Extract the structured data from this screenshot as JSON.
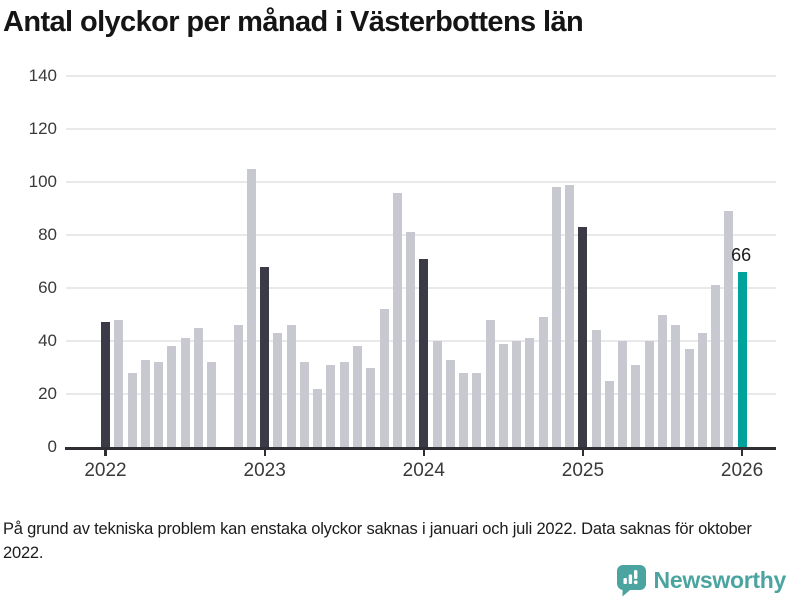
{
  "title": "Antal olyckor per månad i Västerbottens län",
  "footnote": "På grund av tekniska problem kan enstaka olyckor saknas i januari och juli 2022. Data saknas för oktober 2022.",
  "brand": {
    "name": "Newsworthy",
    "color": "#4ba49f"
  },
  "colors": {
    "bar": "#c8c8d0",
    "highlight_dark": "#3b3b48",
    "highlight_teal": "#00a39b",
    "grid": "#e9e9eb",
    "axis": "#2f2f33",
    "text": "#1a1a1a"
  },
  "chart_data": {
    "type": "bar",
    "title": "Antal olyckor per månad i Västerbottens län",
    "xlabel": "",
    "ylabel": "",
    "ylim": [
      0,
      140
    ],
    "yticks": [
      0,
      20,
      40,
      60,
      80,
      100,
      120,
      140
    ],
    "year_ticks": [
      2022,
      2023,
      2024,
      2025,
      2026
    ],
    "grid": true,
    "legend": "none",
    "annotation": {
      "text": "66",
      "month": "2026-01"
    },
    "missing_months": [
      "2022-10"
    ],
    "points": [
      {
        "month": "2022-01",
        "value": 47,
        "color": "dark"
      },
      {
        "month": "2022-02",
        "value": 48
      },
      {
        "month": "2022-03",
        "value": 28
      },
      {
        "month": "2022-04",
        "value": 33
      },
      {
        "month": "2022-05",
        "value": 32
      },
      {
        "month": "2022-06",
        "value": 38
      },
      {
        "month": "2022-07",
        "value": 41
      },
      {
        "month": "2022-08",
        "value": 45
      },
      {
        "month": "2022-09",
        "value": 32
      },
      {
        "month": "2022-10",
        "value": null
      },
      {
        "month": "2022-11",
        "value": 46
      },
      {
        "month": "2022-12",
        "value": 105
      },
      {
        "month": "2023-01",
        "value": 68,
        "color": "dark"
      },
      {
        "month": "2023-02",
        "value": 43
      },
      {
        "month": "2023-03",
        "value": 46
      },
      {
        "month": "2023-04",
        "value": 32
      },
      {
        "month": "2023-05",
        "value": 22
      },
      {
        "month": "2023-06",
        "value": 31
      },
      {
        "month": "2023-07",
        "value": 32
      },
      {
        "month": "2023-08",
        "value": 38
      },
      {
        "month": "2023-09",
        "value": 30
      },
      {
        "month": "2023-10",
        "value": 52
      },
      {
        "month": "2023-11",
        "value": 96
      },
      {
        "month": "2023-12",
        "value": 81
      },
      {
        "month": "2024-01",
        "value": 71,
        "color": "dark"
      },
      {
        "month": "2024-02",
        "value": 40
      },
      {
        "month": "2024-03",
        "value": 33
      },
      {
        "month": "2024-04",
        "value": 28
      },
      {
        "month": "2024-05",
        "value": 28
      },
      {
        "month": "2024-06",
        "value": 48
      },
      {
        "month": "2024-07",
        "value": 39
      },
      {
        "month": "2024-08",
        "value": 40
      },
      {
        "month": "2024-09",
        "value": 41
      },
      {
        "month": "2024-10",
        "value": 49
      },
      {
        "month": "2024-11",
        "value": 98
      },
      {
        "month": "2024-12",
        "value": 99
      },
      {
        "month": "2025-01",
        "value": 83,
        "color": "dark"
      },
      {
        "month": "2025-02",
        "value": 44
      },
      {
        "month": "2025-03",
        "value": 25
      },
      {
        "month": "2025-04",
        "value": 40
      },
      {
        "month": "2025-05",
        "value": 31
      },
      {
        "month": "2025-06",
        "value": 40
      },
      {
        "month": "2025-07",
        "value": 50
      },
      {
        "month": "2025-08",
        "value": 46
      },
      {
        "month": "2025-09",
        "value": 37
      },
      {
        "month": "2025-10",
        "value": 43
      },
      {
        "month": "2025-11",
        "value": 61
      },
      {
        "month": "2025-12",
        "value": 89
      },
      {
        "month": "2026-01",
        "value": 66,
        "color": "teal"
      }
    ]
  }
}
